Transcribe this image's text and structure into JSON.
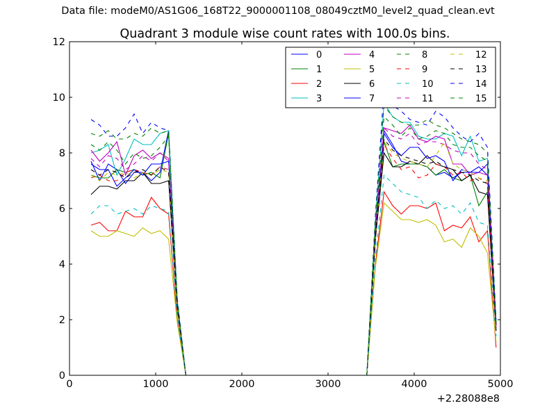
{
  "figure": {
    "supertitle": "Data file: modeM0/AS1G06_168T22_9000001108_08049cztM0_level2_quad_clean.evt"
  },
  "chart_data": {
    "type": "line",
    "title": "Quadrant 3 module wise count rates with 100.0s bins.",
    "xlabel": "",
    "ylabel": "",
    "x_offset_label": "+2.28088e8",
    "xlim": [
      0,
      5000
    ],
    "ylim": [
      0,
      12
    ],
    "xticks": [
      0,
      1000,
      2000,
      3000,
      4000,
      5000
    ],
    "yticks": [
      0,
      2,
      4,
      6,
      8,
      10,
      12
    ],
    "grid": false,
    "legend_position": "top-right",
    "legend_columns": 4,
    "x": [
      250,
      350,
      450,
      550,
      650,
      750,
      850,
      950,
      1050,
      1150,
      1250,
      1350,
      1450,
      1550,
      1650,
      1750,
      1850,
      1950,
      2050,
      2150,
      2250,
      2350,
      2450,
      2550,
      2650,
      2750,
      2850,
      2950,
      3050,
      3150,
      3250,
      3350,
      3450,
      3550,
      3650,
      3750,
      3850,
      3950,
      4050,
      4150,
      4250,
      4350,
      4450,
      4550,
      4650,
      4750,
      4850,
      4950
    ],
    "series": [
      {
        "name": "0",
        "color": "#0000ff",
        "dash": "solid",
        "values": [
          7.7,
          7.0,
          7.6,
          7.4,
          6.9,
          7.3,
          7.3,
          7.0,
          7.3,
          8.8,
          2.6,
          0,
          0,
          0,
          0,
          0,
          0,
          0,
          0,
          0,
          0,
          0,
          0,
          0,
          0,
          0,
          0,
          0,
          0,
          0,
          0,
          0,
          0,
          5.0,
          8.8,
          8.3,
          7.7,
          7.6,
          7.6,
          7.5,
          7.2,
          7.3,
          7.1,
          7.3,
          7.3,
          7.5,
          7.2,
          1.8
        ]
      },
      {
        "name": "1",
        "color": "#008000",
        "dash": "solid",
        "values": [
          7.2,
          7.1,
          7.1,
          7.4,
          7.3,
          7.4,
          7.2,
          7.3,
          7.1,
          8.7,
          2.5,
          0,
          0,
          0,
          0,
          0,
          0,
          0,
          0,
          0,
          0,
          0,
          0,
          0,
          0,
          0,
          0,
          0,
          0,
          0,
          0,
          0,
          0,
          4.9,
          8.4,
          7.5,
          7.6,
          7.6,
          7.6,
          7.5,
          7.2,
          7.4,
          7.1,
          7.0,
          7.2,
          6.1,
          6.6,
          1.6
        ]
      },
      {
        "name": "2",
        "color": "#ff0000",
        "dash": "solid",
        "values": [
          5.4,
          5.5,
          5.2,
          5.2,
          5.9,
          5.7,
          5.7,
          6.4,
          6.0,
          5.8,
          2.0,
          0,
          0,
          0,
          0,
          0,
          0,
          0,
          0,
          0,
          0,
          0,
          0,
          0,
          0,
          0,
          0,
          0,
          0,
          0,
          0,
          0,
          0,
          4.0,
          6.6,
          6.1,
          5.8,
          6.1,
          6.1,
          6.0,
          6.2,
          5.2,
          5.4,
          5.3,
          5.7,
          4.8,
          5.2,
          1.0
        ]
      },
      {
        "name": "3",
        "color": "#00bfbf",
        "dash": "solid",
        "values": [
          8.0,
          8.1,
          8.3,
          7.2,
          7.8,
          8.5,
          8.3,
          8.3,
          8.7,
          8.8,
          2.7,
          0,
          0,
          0,
          0,
          0,
          0,
          0,
          0,
          0,
          0,
          0,
          0,
          0,
          0,
          0,
          0,
          0,
          0,
          0,
          0,
          0,
          0,
          5.6,
          9.8,
          9.3,
          9.1,
          9.1,
          8.6,
          8.5,
          8.5,
          8.7,
          8.6,
          7.9,
          8.6,
          7.7,
          7.8,
          1.9
        ]
      },
      {
        "name": "4",
        "color": "#bf00bf",
        "dash": "solid",
        "values": [
          8.1,
          7.7,
          8.0,
          8.4,
          7.2,
          7.9,
          8.1,
          7.8,
          8.0,
          7.8,
          2.6,
          0,
          0,
          0,
          0,
          0,
          0,
          0,
          0,
          0,
          0,
          0,
          0,
          0,
          0,
          0,
          0,
          0,
          0,
          0,
          0,
          0,
          0,
          5.2,
          8.9,
          8.8,
          8.7,
          9.0,
          8.5,
          8.4,
          8.6,
          8.5,
          7.6,
          7.6,
          7.2,
          7.3,
          7.2,
          1.7
        ]
      },
      {
        "name": "5",
        "color": "#bfbf00",
        "dash": "solid",
        "values": [
          5.2,
          5.0,
          5.0,
          5.2,
          5.1,
          5.0,
          5.3,
          5.1,
          5.2,
          4.9,
          1.9,
          0,
          0,
          0,
          0,
          0,
          0,
          0,
          0,
          0,
          0,
          0,
          0,
          0,
          0,
          0,
          0,
          0,
          0,
          0,
          0,
          0,
          0,
          3.9,
          6.2,
          5.9,
          5.6,
          5.6,
          5.5,
          5.6,
          5.4,
          4.8,
          4.9,
          4.6,
          5.3,
          5.0,
          4.4,
          1.2
        ]
      },
      {
        "name": "6",
        "color": "#000000",
        "dash": "solid",
        "values": [
          6.5,
          6.8,
          6.8,
          6.7,
          7.0,
          7.0,
          7.3,
          6.9,
          6.9,
          7.0,
          2.4,
          0,
          0,
          0,
          0,
          0,
          0,
          0,
          0,
          0,
          0,
          0,
          0,
          0,
          0,
          0,
          0,
          0,
          0,
          0,
          0,
          0,
          0,
          4.9,
          8.0,
          7.5,
          7.5,
          7.7,
          7.6,
          7.9,
          7.6,
          7.5,
          7.4,
          7.0,
          7.2,
          6.6,
          6.5,
          1.6
        ]
      },
      {
        "name": "7",
        "color": "#0000ff",
        "dash": "solid",
        "values": [
          7.6,
          7.4,
          7.4,
          6.8,
          7.1,
          7.4,
          7.2,
          7.6,
          7.6,
          7.7,
          2.6,
          0,
          0,
          0,
          0,
          0,
          0,
          0,
          0,
          0,
          0,
          0,
          0,
          0,
          0,
          0,
          0,
          0,
          0,
          0,
          0,
          0,
          0,
          5.1,
          8.7,
          8.2,
          7.9,
          8.2,
          8.2,
          7.8,
          7.9,
          7.7,
          7.0,
          7.4,
          7.3,
          7.3,
          7.6,
          1.8
        ]
      },
      {
        "name": "8",
        "color": "#008000",
        "dash": "dashed",
        "values": [
          8.3,
          8.1,
          8.4,
          8.1,
          7.6,
          8.0,
          7.8,
          7.9,
          8.2,
          8.6,
          2.7,
          0,
          0,
          0,
          0,
          0,
          0,
          0,
          0,
          0,
          0,
          0,
          0,
          0,
          0,
          0,
          0,
          0,
          0,
          0,
          0,
          0,
          0,
          5.5,
          9.3,
          9.0,
          8.6,
          8.9,
          8.5,
          8.6,
          8.8,
          8.7,
          8.3,
          8.2,
          8.2,
          7.9,
          7.7,
          1.9
        ]
      },
      {
        "name": "9",
        "color": "#ff0000",
        "dash": "dashed",
        "values": [
          7.1,
          7.2,
          7.0,
          7.0,
          7.3,
          7.4,
          7.3,
          7.2,
          7.5,
          7.4,
          2.5,
          0,
          0,
          0,
          0,
          0,
          0,
          0,
          0,
          0,
          0,
          0,
          0,
          0,
          0,
          0,
          0,
          0,
          0,
          0,
          0,
          0,
          0,
          5.0,
          8.3,
          7.8,
          7.4,
          7.5,
          7.1,
          7.2,
          7.6,
          7.5,
          7.2,
          7.3,
          7.0,
          7.1,
          6.9,
          1.6
        ]
      },
      {
        "name": "10",
        "color": "#00bfbf",
        "dash": "dashed",
        "values": [
          5.8,
          6.1,
          6.1,
          5.8,
          5.9,
          6.0,
          5.8,
          6.1,
          6.0,
          5.9,
          2.1,
          0,
          0,
          0,
          0,
          0,
          0,
          0,
          0,
          0,
          0,
          0,
          0,
          0,
          0,
          0,
          0,
          0,
          0,
          0,
          0,
          0,
          0,
          4.2,
          7.2,
          6.9,
          6.6,
          6.5,
          6.4,
          6.0,
          6.3,
          6.0,
          6.1,
          5.8,
          6.2,
          5.5,
          5.4,
          1.4
        ]
      },
      {
        "name": "11",
        "color": "#bf00bf",
        "dash": "dashed",
        "values": [
          7.8,
          7.5,
          7.9,
          7.8,
          7.4,
          7.6,
          7.9,
          7.7,
          8.0,
          7.7,
          2.6,
          0,
          0,
          0,
          0,
          0,
          0,
          0,
          0,
          0,
          0,
          0,
          0,
          0,
          0,
          0,
          0,
          0,
          0,
          0,
          0,
          0,
          0,
          5.3,
          8.9,
          8.6,
          8.5,
          8.7,
          8.3,
          8.4,
          8.4,
          8.3,
          8.1,
          8.0,
          8.0,
          7.6,
          7.4,
          1.8
        ]
      },
      {
        "name": "12",
        "color": "#bfbf00",
        "dash": "dashed",
        "values": [
          7.2,
          7.0,
          7.3,
          7.2,
          7.3,
          7.1,
          7.3,
          7.2,
          7.4,
          7.3,
          2.5,
          0,
          0,
          0,
          0,
          0,
          0,
          0,
          0,
          0,
          0,
          0,
          0,
          0,
          0,
          0,
          0,
          0,
          0,
          0,
          0,
          0,
          0,
          5.0,
          8.4,
          8.0,
          7.8,
          7.7,
          7.6,
          7.5,
          7.9,
          8.4,
          7.6,
          7.4,
          7.3,
          7.1,
          7.0,
          1.7
        ]
      },
      {
        "name": "13",
        "color": "#000000",
        "dash": "dashed",
        "values": [
          7.4,
          7.2,
          7.4,
          7.3,
          7.1,
          7.3,
          7.4,
          7.2,
          7.5,
          7.3,
          2.5,
          0,
          0,
          0,
          0,
          0,
          0,
          0,
          0,
          0,
          0,
          0,
          0,
          0,
          0,
          0,
          0,
          0,
          0,
          0,
          0,
          0,
          0,
          5.0,
          8.5,
          8.1,
          7.9,
          7.8,
          7.7,
          7.6,
          7.7,
          7.5,
          7.4,
          7.3,
          7.2,
          7.0,
          6.9,
          1.7
        ]
      },
      {
        "name": "14",
        "color": "#0000ff",
        "dash": "dashed",
        "values": [
          9.2,
          9.0,
          8.6,
          8.6,
          8.9,
          9.4,
          8.7,
          9.1,
          8.9,
          8.8,
          2.8,
          0,
          0,
          0,
          0,
          0,
          0,
          0,
          0,
          0,
          0,
          0,
          0,
          0,
          0,
          0,
          0,
          0,
          0,
          0,
          0,
          0,
          0,
          5.8,
          10.3,
          9.7,
          9.5,
          9.2,
          9.1,
          9.0,
          9.5,
          9.3,
          8.9,
          8.6,
          8.4,
          8.7,
          8.2,
          2.0
        ]
      },
      {
        "name": "15",
        "color": "#008000",
        "dash": "dashed",
        "values": [
          8.7,
          8.6,
          8.8,
          8.5,
          8.5,
          8.7,
          8.6,
          8.9,
          8.7,
          8.8,
          2.7,
          0,
          0,
          0,
          0,
          0,
          0,
          0,
          0,
          0,
          0,
          0,
          0,
          0,
          0,
          0,
          0,
          0,
          0,
          0,
          0,
          0,
          0,
          5.7,
          9.7,
          9.3,
          9.1,
          9.0,
          9.0,
          9.2,
          9.0,
          8.9,
          8.7,
          8.5,
          8.4,
          8.3,
          8.0,
          1.9
        ]
      }
    ]
  }
}
